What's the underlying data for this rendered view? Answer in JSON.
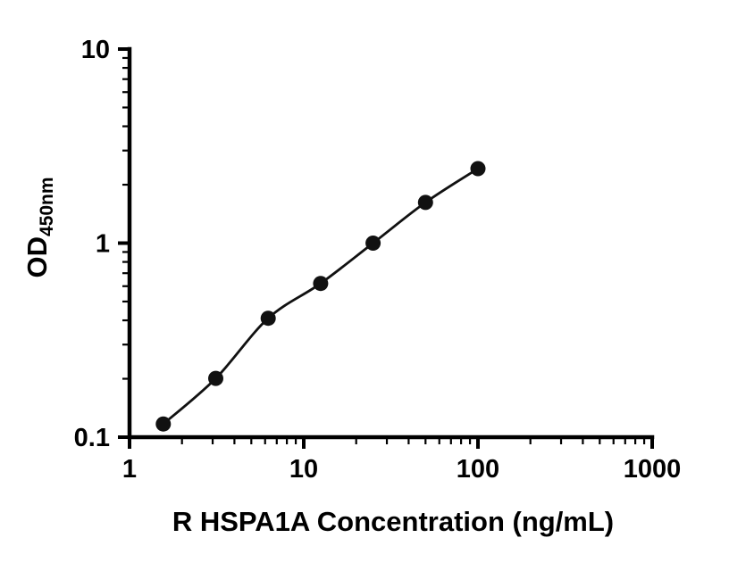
{
  "figure": {
    "background": "#ffffff",
    "axis_color": "#000000"
  },
  "chart_data": {
    "type": "scatter",
    "title": "",
    "xlabel": "R HSPA1A Concentration (ng/mL)",
    "ylabel": "OD",
    "ylabel_subscript": "450nm",
    "xscale": "log",
    "yscale": "log",
    "xlim": [
      1,
      1000
    ],
    "ylim": [
      0.1,
      10
    ],
    "x_major_ticks": [
      1,
      10,
      100,
      1000
    ],
    "x_major_tick_labels": [
      "1",
      "10",
      "100",
      "1000"
    ],
    "y_major_ticks": [
      0.1,
      1,
      10
    ],
    "y_major_tick_labels": [
      "0.1",
      "1",
      "10"
    ],
    "minor_ticks": "log",
    "grid": false,
    "legend": null,
    "axis_color": "#000000",
    "series": [
      {
        "x": [
          1.563,
          3.125,
          6.25,
          12.5,
          25,
          50,
          100
        ],
        "y": [
          0.117,
          0.201,
          0.41,
          0.62,
          1.0,
          1.62,
          2.42
        ],
        "marker": "circle",
        "marker_color": "#111111",
        "line_color": "#111111"
      }
    ]
  }
}
